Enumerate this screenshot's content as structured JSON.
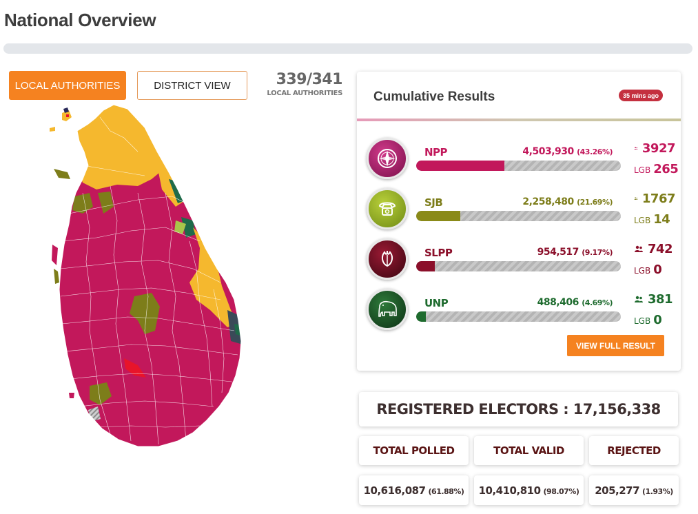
{
  "page": {
    "title": "National Overview",
    "progress_percent": 100
  },
  "view_toggle": {
    "local_label": "LOCAL AUTHORITIES",
    "district_label": "DISTRICT VIEW",
    "active": "LOCAL AUTHORITIES"
  },
  "authorities": {
    "count": "339/341",
    "label": "LOCAL AUTHORITIES"
  },
  "results": {
    "title": "Cumulative Results",
    "updated": "35 mins ago",
    "lgb_label": "LGB",
    "parties": [
      {
        "name": "NPP",
        "votes": "4,503,930",
        "percent": "(43.26%)",
        "share": 0.4326,
        "members": "3927",
        "lgb": "265",
        "color": "#c2185b",
        "logo": "compass-icon"
      },
      {
        "name": "SJB",
        "votes": "2,258,480",
        "percent": "(21.69%)",
        "share": 0.2169,
        "members": "1767",
        "lgb": "14",
        "color": "#8a8a18",
        "logo": "telephone-icon"
      },
      {
        "name": "SLPP",
        "votes": "954,517",
        "percent": "(9.17%)",
        "share": 0.0917,
        "members": "742",
        "lgb": "0",
        "color": "#8b0f2a",
        "logo": "flower-bud-icon"
      },
      {
        "name": "UNP",
        "votes": "488,406",
        "percent": "(4.69%)",
        "share": 0.0469,
        "members": "381",
        "lgb": "0",
        "color": "#1e6b2e",
        "logo": "elephant-icon"
      }
    ],
    "view_full_label": "VIEW FULL RESULT"
  },
  "electors": {
    "label": "REGISTERED ELECTORS : 17,156,338"
  },
  "stats": {
    "polled": {
      "label": "TOTAL POLLED",
      "value": "10,616,087",
      "percent": "(61.88%)"
    },
    "valid": {
      "label": "TOTAL VALID",
      "value": "10,410,810",
      "percent": "(98.07%)"
    },
    "rejected": {
      "label": "REJECTED",
      "value": "205,277",
      "percent": "(1.93%)"
    }
  }
}
